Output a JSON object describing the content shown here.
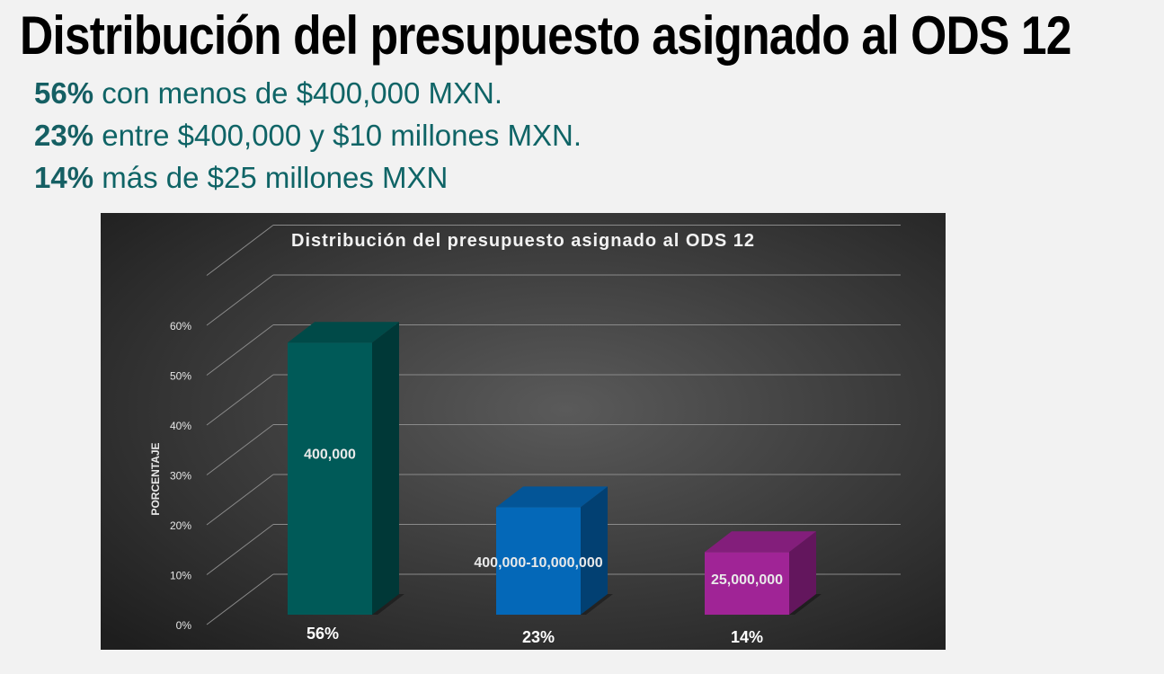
{
  "slide": {
    "title": "Distribución del presupuesto asignado al ODS 12",
    "bullets": [
      {
        "pct": "56%",
        "text": " con menos de $400,000 MXN."
      },
      {
        "pct": "23%",
        "text": " entre $400,000 y $10 millones MXN."
      },
      {
        "pct": "14%",
        "text": " más de $25 millones MXN"
      }
    ]
  },
  "colors": {
    "background": "#f2f2f2",
    "chart_background": "#3a3a3a",
    "bullet_text": "#0f6466",
    "bar_teal": "#005a58",
    "bar_blue": "#0468b8",
    "bar_magenta": "#a02496"
  },
  "chart_data": {
    "type": "bar",
    "title": "Distribución del presupuesto asignado al ODS 12",
    "ylabel": "PORCENTAJE",
    "xlabel": "",
    "ylim": [
      0,
      60
    ],
    "yticks": [
      "0%",
      "10%",
      "20%",
      "30%",
      "40%",
      "50%",
      "60%"
    ],
    "categories": [
      "56%",
      "23%",
      "14%"
    ],
    "values": [
      56,
      23,
      14
    ],
    "data_labels": [
      "400,000",
      "400,000-10,000,000",
      "25,000,000"
    ],
    "bar_colors": [
      "#005a58",
      "#0468b8",
      "#a02496"
    ],
    "grid": true,
    "style": "3d-column"
  }
}
